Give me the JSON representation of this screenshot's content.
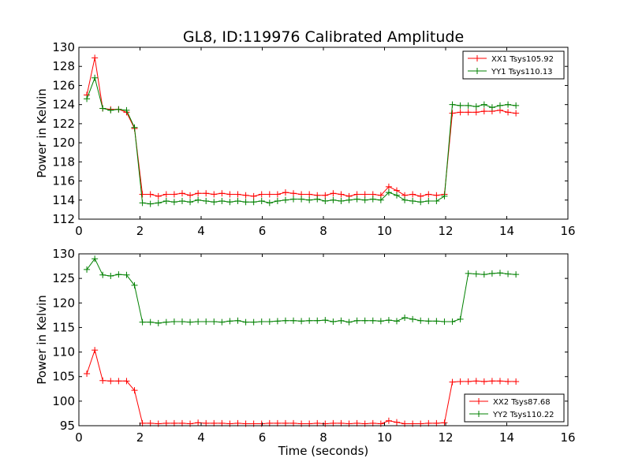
{
  "chart_data": [
    {
      "type": "line",
      "title": "GL8, ID:119976 Calibrated Amplitude",
      "xlabel": "",
      "ylabel": "Power in Kelvin",
      "xlim": [
        0,
        16
      ],
      "ylim": [
        112,
        130
      ],
      "xticks": [
        0,
        2,
        4,
        6,
        8,
        10,
        12,
        14,
        16
      ],
      "yticks": [
        112,
        114,
        116,
        118,
        120,
        122,
        124,
        126,
        128,
        130
      ],
      "grid": false,
      "legend_position": "top-right",
      "x": [
        0.26,
        0.52,
        0.78,
        1.04,
        1.3,
        1.56,
        1.82,
        2.08,
        2.34,
        2.6,
        2.86,
        3.12,
        3.38,
        3.64,
        3.9,
        4.16,
        4.42,
        4.68,
        4.94,
        5.2,
        5.46,
        5.72,
        5.98,
        6.24,
        6.5,
        6.76,
        7.02,
        7.28,
        7.54,
        7.8,
        8.06,
        8.32,
        8.58,
        8.84,
        9.1,
        9.36,
        9.62,
        9.88,
        10.14,
        10.4,
        10.66,
        10.92,
        11.18,
        11.44,
        11.7,
        11.96,
        12.22,
        12.48,
        12.74,
        13.0,
        13.26,
        13.52,
        13.78,
        14.04,
        14.3
      ],
      "series": [
        {
          "name": "XX1 Tsys105.92",
          "color": "#ff0000",
          "values": [
            125.0,
            128.9,
            123.6,
            123.5,
            123.5,
            123.2,
            121.5,
            114.6,
            114.6,
            114.4,
            114.6,
            114.6,
            114.7,
            114.5,
            114.7,
            114.7,
            114.6,
            114.7,
            114.6,
            114.6,
            114.5,
            114.4,
            114.6,
            114.6,
            114.6,
            114.8,
            114.7,
            114.6,
            114.6,
            114.5,
            114.5,
            114.7,
            114.6,
            114.4,
            114.6,
            114.6,
            114.6,
            114.5,
            115.4,
            115.0,
            114.5,
            114.6,
            114.4,
            114.6,
            114.5,
            114.6,
            123.1,
            123.2,
            123.2,
            123.2,
            123.3,
            123.3,
            123.4,
            123.2,
            123.1
          ]
        },
        {
          "name": "YY1 Tsys110.13",
          "color": "#008000",
          "values": [
            124.6,
            126.8,
            123.6,
            123.4,
            123.5,
            123.4,
            121.6,
            113.7,
            113.6,
            113.7,
            113.9,
            113.8,
            113.9,
            113.8,
            114.0,
            113.9,
            113.8,
            113.9,
            113.8,
            113.9,
            113.8,
            113.8,
            113.9,
            113.7,
            113.9,
            114.0,
            114.1,
            114.1,
            114.0,
            114.1,
            113.9,
            114.0,
            113.9,
            114.0,
            114.1,
            114.0,
            114.1,
            114.0,
            114.8,
            114.5,
            114.0,
            113.9,
            113.8,
            113.9,
            113.9,
            114.4,
            124.0,
            123.9,
            123.9,
            123.8,
            124.0,
            123.7,
            123.9,
            124.0,
            123.9
          ]
        }
      ]
    },
    {
      "type": "line",
      "title": "",
      "xlabel": "Time (seconds)",
      "ylabel": "Power in Kelvin",
      "xlim": [
        0,
        16
      ],
      "ylim": [
        95,
        130
      ],
      "xticks": [
        0,
        2,
        4,
        6,
        8,
        10,
        12,
        14,
        16
      ],
      "yticks": [
        95,
        100,
        105,
        110,
        115,
        120,
        125,
        130
      ],
      "grid": false,
      "legend_position": "bottom-right",
      "x": [
        0.26,
        0.52,
        0.78,
        1.04,
        1.3,
        1.56,
        1.82,
        2.08,
        2.34,
        2.6,
        2.86,
        3.12,
        3.38,
        3.64,
        3.9,
        4.16,
        4.42,
        4.68,
        4.94,
        5.2,
        5.46,
        5.72,
        5.98,
        6.24,
        6.5,
        6.76,
        7.02,
        7.28,
        7.54,
        7.8,
        8.06,
        8.32,
        8.58,
        8.84,
        9.1,
        9.36,
        9.62,
        9.88,
        10.14,
        10.4,
        10.66,
        10.92,
        11.18,
        11.44,
        11.7,
        11.96,
        12.22,
        12.48,
        12.74,
        13.0,
        13.26,
        13.52,
        13.78,
        14.04,
        14.3
      ],
      "series": [
        {
          "name": "XX2 Tsys87.68",
          "color": "#ff0000",
          "values": [
            105.6,
            110.4,
            104.2,
            104.1,
            104.1,
            104.1,
            102.2,
            95.5,
            95.5,
            95.4,
            95.5,
            95.5,
            95.5,
            95.4,
            95.6,
            95.5,
            95.5,
            95.5,
            95.4,
            95.5,
            95.4,
            95.4,
            95.4,
            95.5,
            95.5,
            95.5,
            95.5,
            95.4,
            95.4,
            95.5,
            95.4,
            95.5,
            95.5,
            95.4,
            95.5,
            95.4,
            95.5,
            95.4,
            96.0,
            95.7,
            95.4,
            95.4,
            95.4,
            95.5,
            95.5,
            95.6,
            103.9,
            104.0,
            104.0,
            104.1,
            104.0,
            104.1,
            104.1,
            104.0,
            104.0
          ]
        },
        {
          "name": "YY2 Tsys110.22",
          "color": "#008000",
          "values": [
            126.8,
            129.0,
            125.7,
            125.5,
            125.8,
            125.7,
            123.6,
            116.1,
            116.1,
            115.9,
            116.1,
            116.2,
            116.2,
            116.1,
            116.2,
            116.2,
            116.2,
            116.1,
            116.3,
            116.4,
            116.1,
            116.1,
            116.2,
            116.2,
            116.3,
            116.4,
            116.4,
            116.3,
            116.4,
            116.4,
            116.5,
            116.2,
            116.4,
            116.1,
            116.4,
            116.4,
            116.4,
            116.3,
            116.5,
            116.3,
            117.0,
            116.7,
            116.4,
            116.3,
            116.3,
            116.2,
            116.2,
            116.7,
            126.0,
            125.9,
            125.8,
            126.0,
            126.1,
            125.9,
            125.8
          ]
        }
      ]
    }
  ]
}
